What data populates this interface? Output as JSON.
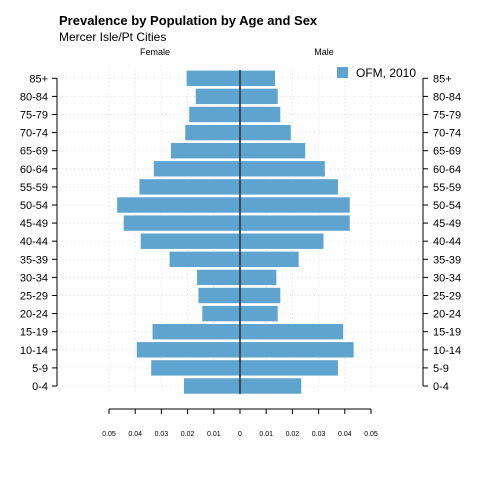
{
  "chart_data": {
    "type": "bar",
    "orientation": "horizontal-population-pyramid",
    "title": "Prevalence by Population by Age and Sex",
    "subtitle": "Mercer Isle/Pt Cities",
    "left_header": "Female",
    "right_header": "Male",
    "categories": [
      "0-4",
      "5-9",
      "10-14",
      "15-19",
      "20-24",
      "25-29",
      "30-34",
      "35-39",
      "40-44",
      "45-49",
      "50-54",
      "55-59",
      "60-64",
      "65-69",
      "70-74",
      "75-79",
      "80-84",
      "85+"
    ],
    "series": [
      {
        "name": "OFM, 2010",
        "female": [
          0.0215,
          0.034,
          0.0395,
          0.0335,
          0.0145,
          0.016,
          0.0165,
          0.027,
          0.038,
          0.0445,
          0.047,
          0.0385,
          0.033,
          0.0265,
          0.021,
          0.0195,
          0.017,
          0.0205
        ],
        "male": [
          0.0235,
          0.0375,
          0.0435,
          0.0395,
          0.0145,
          0.0155,
          0.014,
          0.0225,
          0.032,
          0.042,
          0.042,
          0.0375,
          0.0325,
          0.025,
          0.0195,
          0.0155,
          0.0145,
          0.0135
        ]
      }
    ],
    "x_ticks": [
      "0.05",
      "0.04",
      "0.03",
      "0.02",
      "0.01",
      "0",
      "0.01",
      "0.02",
      "0.03",
      "0.04",
      "0.05"
    ],
    "xlim": [
      -0.05,
      0.05
    ],
    "legend_position": "top-right",
    "grid": true,
    "colors": {
      "bar": "#5fa3cf",
      "center_line": "#1f3a4d",
      "grid": "#dddddd"
    }
  }
}
